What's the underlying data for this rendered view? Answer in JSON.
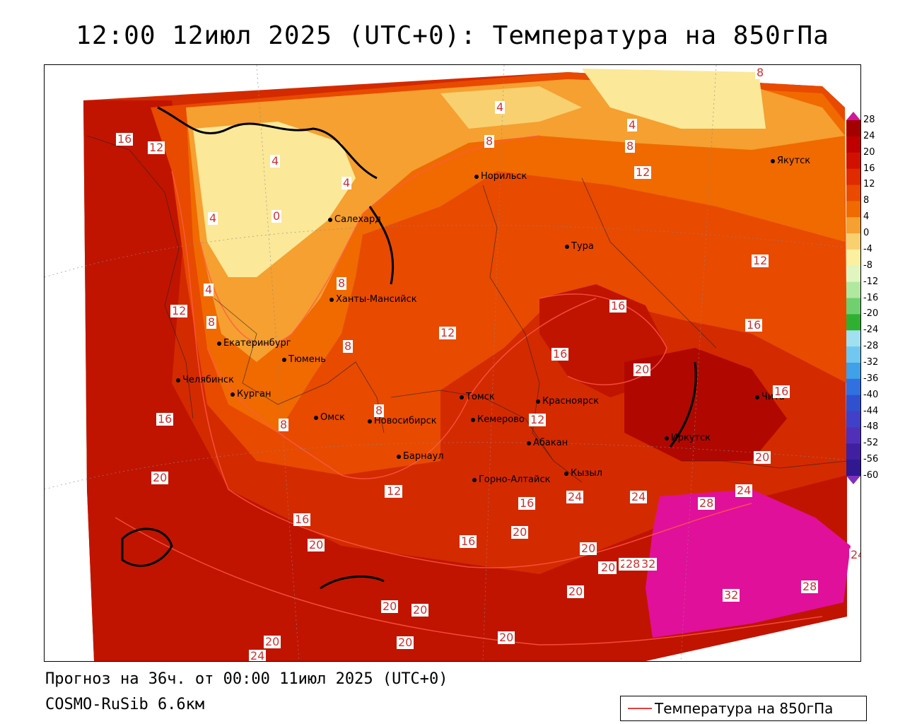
{
  "title": "12:00 12июл 2025 (UTC+0): Температура на 850гПа",
  "footer": {
    "forecast": "Прогноз на 36ч. от 00:00 11июл 2025 (UTC+0)",
    "model": "COSMO-RuSib 6.6км"
  },
  "legend": {
    "label": "Температура на 850гПа",
    "line_color": "#e04040"
  },
  "colorbar": {
    "ticks": [
      "28",
      "24",
      "20",
      "16",
      "12",
      "8",
      "4",
      "0",
      "-4",
      "-8",
      "-12",
      "-16",
      "-20",
      "-24",
      "-28",
      "-32",
      "-36",
      "-40",
      "-44",
      "-48",
      "-52",
      "-56",
      "-60"
    ],
    "colors": [
      "#a50000",
      "#c00000",
      "#d21000",
      "#e02a00",
      "#ea4a00",
      "#f06a00",
      "#f5a030",
      "#f8d070",
      "#fbf0a0",
      "#e0f5c0",
      "#b0e8a0",
      "#70d070",
      "#30b030",
      "#a0e0f0",
      "#70c8f0",
      "#40a0e8",
      "#3070e0",
      "#3050d0",
      "#4040c8",
      "#5030b8",
      "#4020a0",
      "#301890"
    ],
    "arrow_top_color": "#d0189a",
    "arrow_bottom_color": "#8030c0"
  },
  "cities": [
    {
      "name": "Норильск"
    },
    {
      "name": "Якутск"
    },
    {
      "name": "Салехард"
    },
    {
      "name": "Тура"
    },
    {
      "name": "Ханты-Мансийск"
    },
    {
      "name": "Екатеринбург"
    },
    {
      "name": "Тюмень"
    },
    {
      "name": "Челябинск"
    },
    {
      "name": "Курган"
    },
    {
      "name": "Омск"
    },
    {
      "name": "Новосибирск"
    },
    {
      "name": "Томск"
    },
    {
      "name": "Кемерово"
    },
    {
      "name": "Красноярск"
    },
    {
      "name": "Абакан"
    },
    {
      "name": "Барнаул"
    },
    {
      "name": "Горно-Алтайск"
    },
    {
      "name": "Кызыл"
    },
    {
      "name": "Иркутск"
    },
    {
      "name": "Чита"
    }
  ],
  "contour_labels": [
    "8",
    "4",
    "4",
    "8",
    "4",
    "16",
    "12",
    "8",
    "12",
    "4",
    "4",
    "0",
    "4",
    "12",
    "8",
    "12",
    "16",
    "8",
    "12",
    "16",
    "8",
    "8",
    "12",
    "8",
    "16",
    "16",
    "12",
    "20",
    "20",
    "16",
    "20",
    "12",
    "20",
    "16",
    "24",
    "20",
    "24",
    "28",
    "24",
    "16",
    "20",
    "16",
    "20",
    "20",
    "32",
    "32",
    "28",
    "20",
    "20",
    "20",
    "20",
    "20",
    "24",
    "20",
    "2",
    "28",
    "24"
  ]
}
